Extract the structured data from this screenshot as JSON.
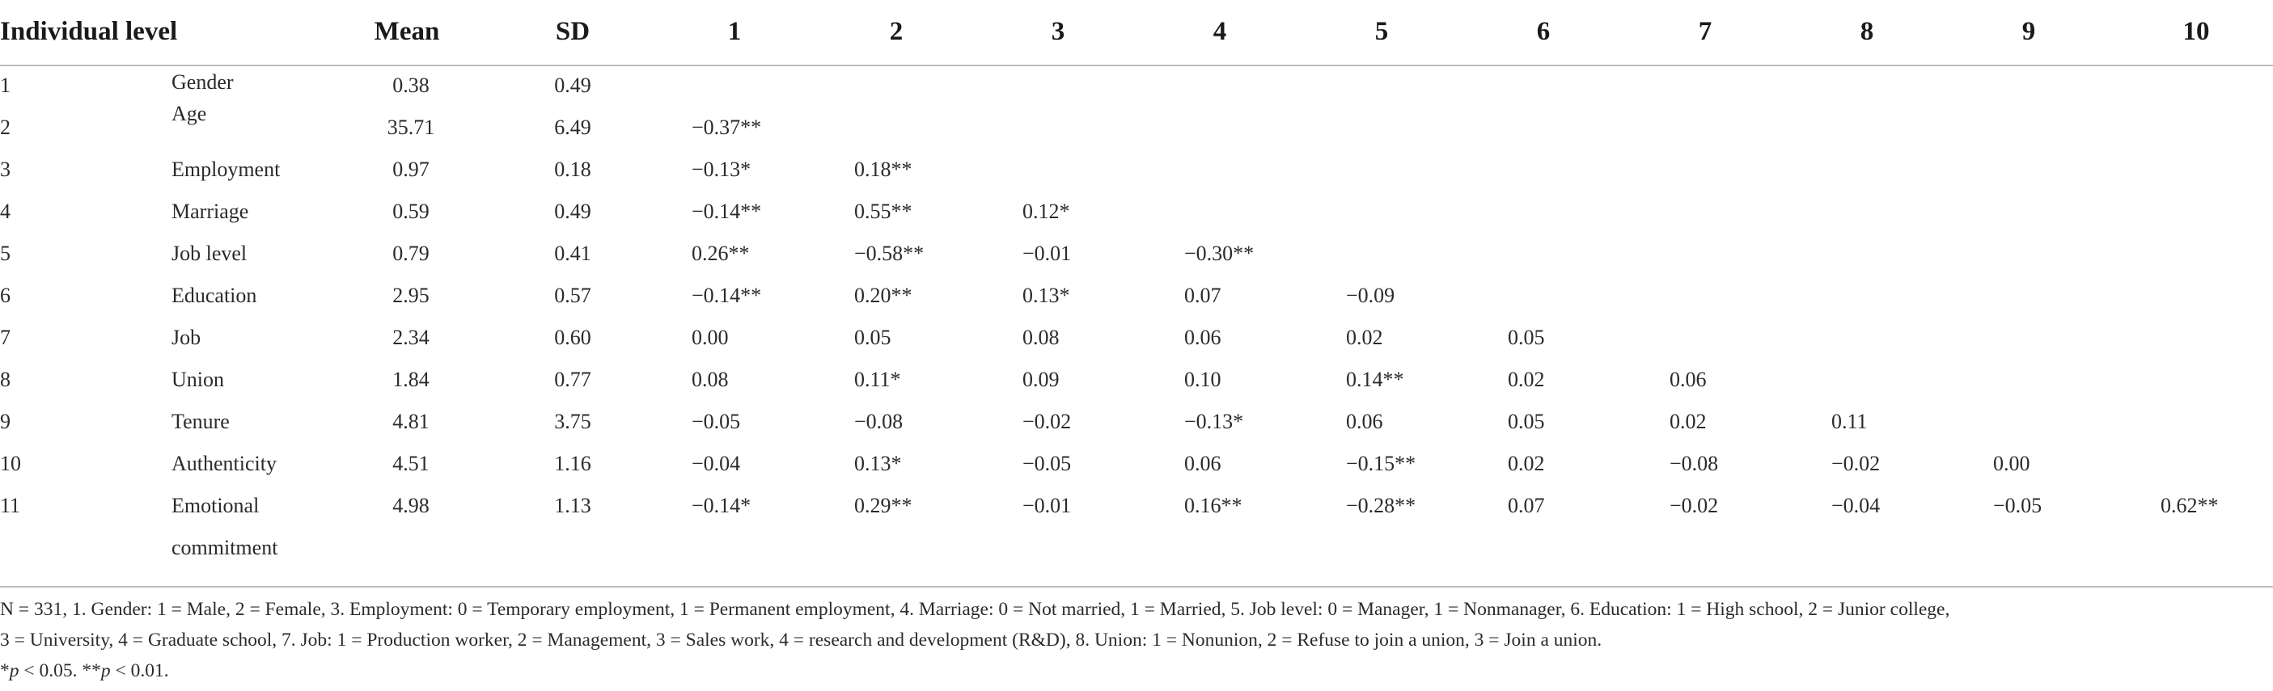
{
  "table": {
    "headers": [
      "Individual level",
      "Mean",
      "SD",
      "1",
      "2",
      "3",
      "4",
      "5",
      "6",
      "7",
      "8",
      "9",
      "10"
    ],
    "rows": [
      {
        "num": "1",
        "label": "Gender",
        "mean": "0.38",
        "sd": "0.49",
        "vals": []
      },
      {
        "num": "2",
        "label": "Age",
        "mean": "35.71",
        "sd": "6.49",
        "vals": [
          "−0.37**"
        ]
      },
      {
        "num": "3",
        "label": "Employment",
        "mean": "0.97",
        "sd": "0.18",
        "vals": [
          "−0.13*",
          "0.18**"
        ]
      },
      {
        "num": "4",
        "label": "Marriage",
        "mean": "0.59",
        "sd": "0.49",
        "vals": [
          "−0.14**",
          "0.55**",
          "0.12*"
        ]
      },
      {
        "num": "5",
        "label": "Job level",
        "mean": "0.79",
        "sd": "0.41",
        "vals": [
          "0.26**",
          "−0.58**",
          "−0.01",
          "−0.30**"
        ]
      },
      {
        "num": "6",
        "label": "Education",
        "mean": "2.95",
        "sd": "0.57",
        "vals": [
          "−0.14**",
          "0.20**",
          "0.13*",
          "0.07",
          "−0.09"
        ]
      },
      {
        "num": "7",
        "label": "Job",
        "mean": "2.34",
        "sd": "0.60",
        "vals": [
          "0.00",
          "0.05",
          "0.08",
          "0.06",
          "0.02",
          "0.05"
        ]
      },
      {
        "num": "8",
        "label": "Union",
        "mean": "1.84",
        "sd": "0.77",
        "vals": [
          "0.08",
          "0.11*",
          "0.09",
          "0.10",
          "0.14**",
          "0.02",
          "0.06"
        ]
      },
      {
        "num": "9",
        "label": "Tenure",
        "mean": "4.81",
        "sd": "3.75",
        "vals": [
          "−0.05",
          "−0.08",
          "−0.02",
          "−0.13*",
          "0.06",
          "0.05",
          "0.02",
          "0.11"
        ]
      },
      {
        "num": "10",
        "label": "Authenticity",
        "mean": "4.51",
        "sd": "1.16",
        "vals": [
          "−0.04",
          "0.13*",
          "−0.05",
          "0.06",
          "−0.15**",
          "0.02",
          "−0.08",
          "−0.02",
          "0.00"
        ]
      },
      {
        "num": "11",
        "label": "Emotional",
        "label2": "commitment",
        "mean": "4.98",
        "sd": "1.13",
        "vals": [
          "−0.14*",
          "0.29**",
          "−0.01",
          "0.16**",
          "−0.28**",
          "0.07",
          "−0.02",
          "−0.04",
          "−0.05",
          "0.62**"
        ]
      }
    ]
  },
  "notes": {
    "line1": "N = 331, 1. Gender: 1 = Male, 2 = Female, 3. Employment: 0 = Temporary employment, 1 = Permanent employment, 4. Marriage: 0 = Not married, 1 = Married, 5. Job level: 0 = Manager, 1 = Nonmanager, 6. Education: 1 = High school, 2 = Junior college,",
    "line2": "3 = University, 4 = Graduate school, 7. Job: 1 = Production worker, 2 = Management, 3 = Sales work, 4 = research and development (R&D), 8. Union: 1 = Nonunion, 2 = Refuse to join a union, 3 = Join a union.",
    "sig1_star": "*",
    "sig1_p": "p",
    "sig1_rest": " < 0.05. **",
    "sig2_p": "p",
    "sig2_rest": " < 0.01."
  }
}
